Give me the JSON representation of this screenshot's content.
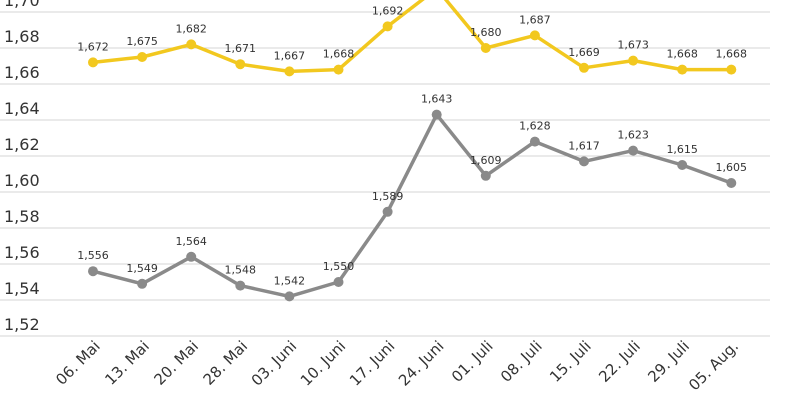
{
  "chart_data": {
    "type": "line",
    "title": "",
    "xlabel": "",
    "ylabel": "",
    "ylim": [
      1.52,
      1.7
    ],
    "y_ticks": [
      "1,52",
      "1,54",
      "1,56",
      "1,58",
      "1,60",
      "1,62",
      "1,64",
      "1,66",
      "1,68",
      "1,70"
    ],
    "grid": true,
    "categories": [
      "06. Mai",
      "13. Mai",
      "20. Mai",
      "28. Mai",
      "03. Juni",
      "10. Juni",
      "17. Juni",
      "24. Juni",
      "01. Juli",
      "08. Juli",
      "15. Juli",
      "22. Juli",
      "29. Juli",
      "05. Aug."
    ],
    "series": [
      {
        "name": "upper",
        "color": "#f2c81f",
        "values": [
          1.672,
          1.675,
          1.682,
          1.671,
          1.667,
          1.668,
          1.692,
          1.713,
          1.68,
          1.687,
          1.669,
          1.673,
          1.668,
          1.668
        ],
        "labels": [
          "1,672",
          "1,675",
          "1,682",
          "1,671",
          "1,667",
          "1,668",
          "1,692",
          "",
          "1,680",
          "1,687",
          "1,669",
          "1,673",
          "1,668",
          "1,668"
        ]
      },
      {
        "name": "lower",
        "color": "#8a8a8a",
        "values": [
          1.556,
          1.549,
          1.564,
          1.548,
          1.542,
          1.55,
          1.589,
          1.643,
          1.609,
          1.628,
          1.617,
          1.623,
          1.615,
          1.605
        ],
        "labels": [
          "1,556",
          "1,549",
          "1,564",
          "1,548",
          "1,542",
          "1,550",
          "1,589",
          "1,643",
          "1,609",
          "1,628",
          "1,617",
          "1,623",
          "1,615",
          "1,605"
        ]
      }
    ]
  }
}
